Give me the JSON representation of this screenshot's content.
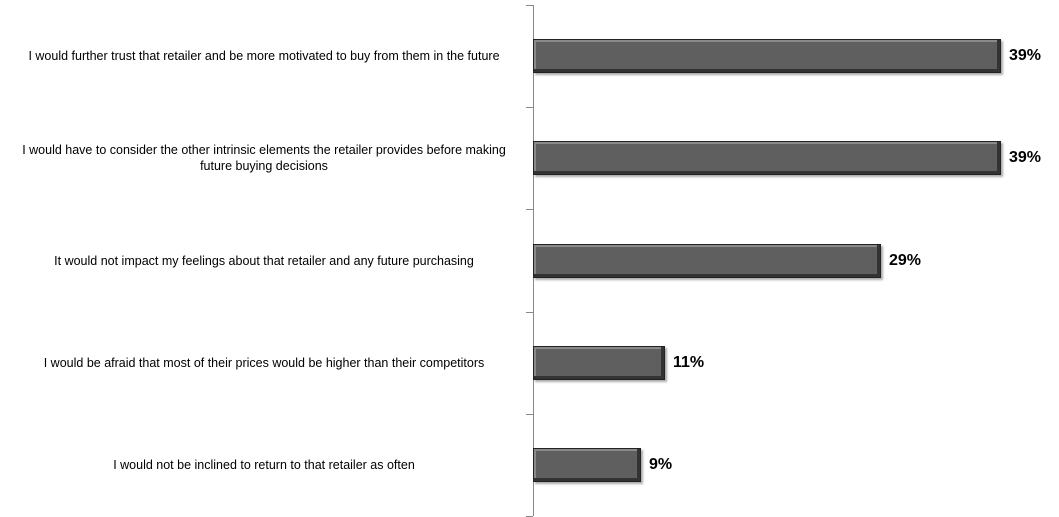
{
  "chart_data": {
    "type": "bar",
    "orientation": "horizontal",
    "categories": [
      "I would further trust that retailer and be more motivated to buy from them in the future",
      "I would have to consider the other intrinsic elements the retailer provides before making future buying decisions",
      "It would not impact my feelings about that retailer and any future purchasing",
      "I would be afraid that most of their prices would be higher than their competitors",
      "I would not be inclined to return to that retailer as often"
    ],
    "values": [
      39,
      39,
      29,
      11,
      9
    ],
    "value_labels": [
      "39%",
      "39%",
      "29%",
      "11%",
      "9%"
    ],
    "color": "#5f5f5f"
  }
}
